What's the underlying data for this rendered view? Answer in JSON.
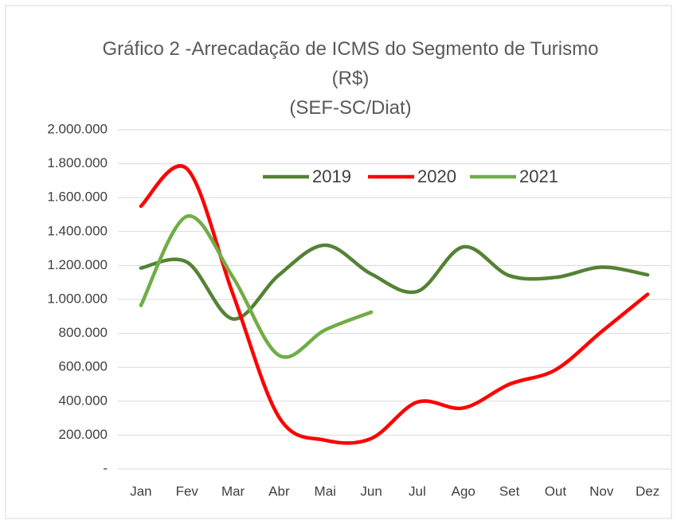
{
  "chart_data": {
    "type": "line",
    "title": "Gráfico 2 -Arrecadação de ICMS do Segmento de Turismo (R$)",
    "subtitle": "(SEF-SC/Diat)",
    "categories": [
      "Jan",
      "Fev",
      "Mar",
      "Abr",
      "Mai",
      "Jun",
      "Jul",
      "Ago",
      "Set",
      "Out",
      "Nov",
      "Dez"
    ],
    "series": [
      {
        "name": "2019",
        "color": "#548235",
        "values": [
          1185000,
          1220000,
          885000,
          1145000,
          1320000,
          1150000,
          1047000,
          1310000,
          1140000,
          1130000,
          1190000,
          1145000
        ]
      },
      {
        "name": "2020",
        "color": "#ff0000",
        "values": [
          1550000,
          1770000,
          1030000,
          305000,
          170000,
          180000,
          395000,
          360000,
          500000,
          585000,
          810000,
          1030000
        ]
      },
      {
        "name": "2021",
        "color": "#70ad47",
        "values": [
          965000,
          1490000,
          1130000,
          670000,
          820000,
          925000,
          null,
          null,
          null,
          null,
          null,
          null
        ]
      }
    ],
    "ylim": [
      0,
      2000000
    ],
    "yticks": [
      {
        "value": 0,
        "label": "-"
      },
      {
        "value": 200000,
        "label": "200.000"
      },
      {
        "value": 400000,
        "label": "400.000"
      },
      {
        "value": 600000,
        "label": "600.000"
      },
      {
        "value": 800000,
        "label": "800.000"
      },
      {
        "value": 1000000,
        "label": "1.000.000"
      },
      {
        "value": 1200000,
        "label": "1.200.000"
      },
      {
        "value": 1400000,
        "label": "1.400.000"
      },
      {
        "value": 1600000,
        "label": "1.600.000"
      },
      {
        "value": 1800000,
        "label": "1.800.000"
      },
      {
        "value": 2000000,
        "label": "2.000.000"
      }
    ],
    "grid": true,
    "smooth": true,
    "legend": "top"
  }
}
